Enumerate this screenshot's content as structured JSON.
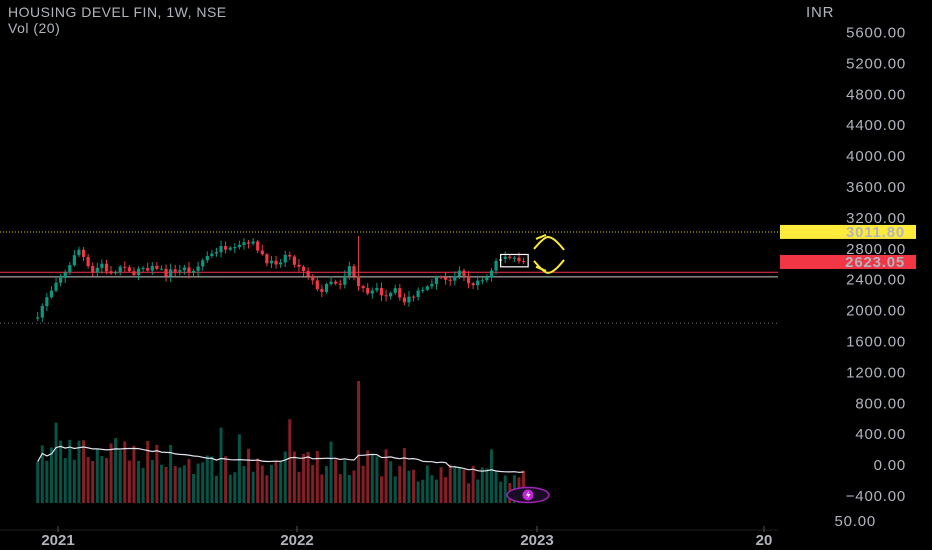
{
  "header": {
    "title": "HOUSING DEVEL FIN, 1W, NSE",
    "volume_label": "Vol (20)"
  },
  "axis": {
    "currency": "INR",
    "price_ticks": [
      "5600.00",
      "5200.00",
      "4800.00",
      "4400.00",
      "4000.00",
      "3600.00",
      "3200.00",
      "2800.00",
      "2400.00",
      "2000.00",
      "1600.00",
      "1200.00",
      "800.00",
      "400.00",
      "0.00",
      "−400.00"
    ],
    "bottom_tick": "50.00",
    "x_ticks": [
      "2021",
      "2022",
      "2023",
      "20"
    ]
  },
  "chart_data": {
    "type": "candlestick",
    "symbol": "HOUSING DEVEL FIN",
    "interval": "1W",
    "exchange": "NSE",
    "price_range": [
      -400,
      5600
    ],
    "price_labels": [
      {
        "text": "3011.80",
        "value": 3011.8,
        "color": "#ffeb3b"
      },
      {
        "text": "2623.05",
        "value": 2623.05,
        "color": "#f23645"
      }
    ],
    "horizontal_levels": [
      3011.8,
      2490,
      2430,
      1830
    ],
    "anchor_closes": [
      [
        "2020-12-01",
        1950
      ],
      [
        "2020-12-15",
        2150
      ],
      [
        "2021-01-05",
        2400
      ],
      [
        "2021-01-19",
        2600
      ],
      [
        "2021-02-02",
        2780
      ],
      [
        "2021-02-09",
        2700
      ],
      [
        "2021-02-23",
        2500
      ],
      [
        "2021-03-09",
        2600
      ],
      [
        "2021-03-23",
        2450
      ],
      [
        "2021-04-06",
        2550
      ],
      [
        "2021-04-20",
        2480
      ],
      [
        "2021-05-04",
        2520
      ],
      [
        "2021-05-18",
        2500
      ],
      [
        "2021-06-01",
        2560
      ],
      [
        "2021-06-15",
        2470
      ],
      [
        "2021-06-29",
        2520
      ],
      [
        "2021-07-13",
        2530
      ],
      [
        "2021-07-27",
        2470
      ],
      [
        "2021-08-10",
        2650
      ],
      [
        "2021-08-24",
        2750
      ],
      [
        "2021-09-07",
        2800
      ],
      [
        "2021-09-21",
        2850
      ],
      [
        "2021-10-05",
        2870
      ],
      [
        "2021-10-19",
        2900
      ],
      [
        "2021-11-02",
        2800
      ],
      [
        "2021-11-16",
        2650
      ],
      [
        "2021-11-30",
        2550
      ],
      [
        "2021-12-14",
        2700
      ],
      [
        "2021-12-28",
        2600
      ],
      [
        "2022-01-11",
        2480
      ],
      [
        "2022-01-25",
        2350
      ],
      [
        "2022-02-08",
        2250
      ],
      [
        "2022-02-22",
        2350
      ],
      [
        "2022-03-08",
        2300
      ],
      [
        "2022-03-22",
        2550
      ],
      [
        "2022-04-05",
        2300
      ],
      [
        "2022-04-19",
        2200
      ],
      [
        "2022-05-03",
        2250
      ],
      [
        "2022-05-17",
        2200
      ],
      [
        "2022-05-31",
        2300
      ],
      [
        "2022-06-14",
        2100
      ],
      [
        "2022-06-28",
        2200
      ],
      [
        "2022-07-12",
        2300
      ],
      [
        "2022-07-26",
        2380
      ],
      [
        "2022-08-09",
        2430
      ],
      [
        "2022-08-23",
        2400
      ],
      [
        "2022-09-06",
        2470
      ],
      [
        "2022-09-20",
        2350
      ],
      [
        "2022-10-04",
        2350
      ],
      [
        "2022-10-18",
        2430
      ],
      [
        "2022-11-01",
        2630
      ],
      [
        "2022-11-15",
        2680
      ],
      [
        "2022-11-29",
        2690
      ],
      [
        "2022-12-13",
        2650
      ]
    ],
    "volume": {
      "label": "Vol (20)",
      "spike_date": "2022-04-05"
    },
    "annotations": [
      {
        "type": "box",
        "from": "2022-11-08",
        "to": "2022-12-20",
        "low": 2560,
        "high": 2720
      },
      {
        "type": "arrow-up",
        "color": "#ffeb3b"
      },
      {
        "type": "arrow-down",
        "color": "#ffeb3b"
      }
    ],
    "colors": {
      "up": "#089981",
      "down": "#f23645",
      "volume_ma": "#e0e3eb",
      "background": "#000000"
    }
  }
}
